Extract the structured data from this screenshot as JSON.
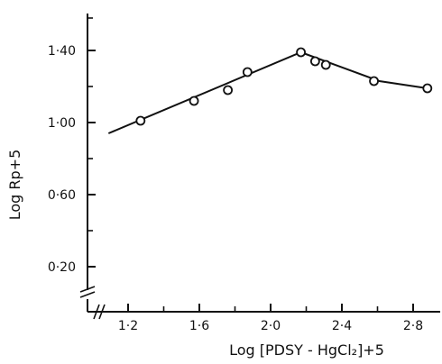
{
  "chart_data": {
    "type": "scatter",
    "title": "",
    "xlabel": "Log [PDSY - HgCl₂]+5",
    "ylabel": "Log Rp+5",
    "xlim": [
      1.0,
      2.95
    ],
    "ylim": [
      0.0,
      1.6
    ],
    "x_ticks": [
      1.2,
      1.6,
      2.0,
      2.4,
      2.8
    ],
    "x_tick_labels": [
      "1·2",
      "1·6",
      "2·0",
      "2·4",
      "2·8"
    ],
    "x_minor_ticks": [
      1.4,
      1.8,
      2.2,
      2.6
    ],
    "y_ticks": [
      0.2,
      0.6,
      1.0,
      1.4
    ],
    "y_tick_labels": [
      "0·20",
      "0·60",
      "1·00",
      "1·40"
    ],
    "y_minor_ticks": [
      0.4,
      0.8,
      1.2
    ],
    "axis_break": true,
    "grid": false,
    "series": [
      {
        "marker": "open-circle",
        "x": [
          1.27,
          1.57,
          1.76,
          1.87,
          2.17,
          2.25,
          2.31,
          2.58,
          2.88
        ],
        "y": [
          1.01,
          1.12,
          1.18,
          1.28,
          1.39,
          1.34,
          1.32,
          1.23,
          1.19
        ]
      },
      {
        "marker": "none",
        "line": "fitted",
        "x": [
          1.09,
          2.17,
          2.61,
          2.88
        ],
        "y": [
          0.94,
          1.39,
          1.23,
          1.19
        ]
      }
    ]
  },
  "colors": {
    "ink": "#111111",
    "background": "#ffffff"
  }
}
